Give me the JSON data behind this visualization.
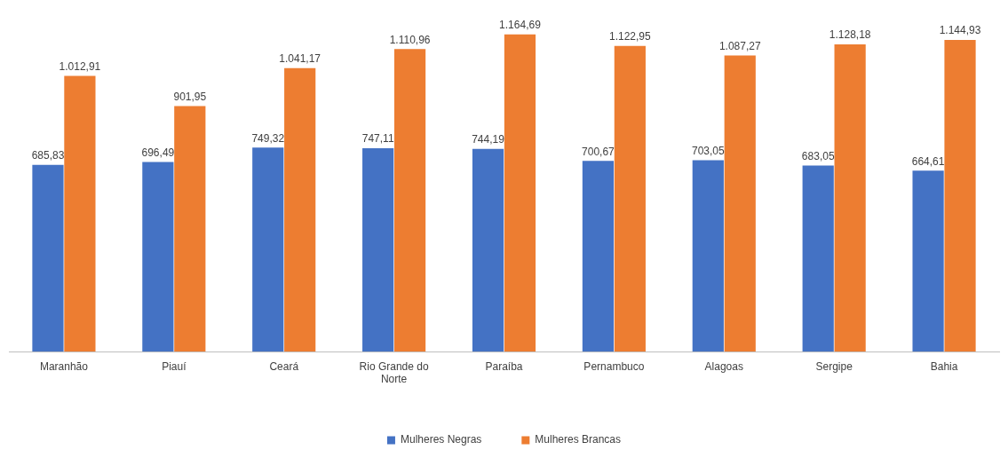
{
  "chart_data": {
    "type": "bar",
    "categories": [
      "Maranhão",
      "Piauí",
      "Ceará",
      "Rio Grande do Norte",
      "Paraíba",
      "Pernambuco",
      "Alagoas",
      "Sergipe",
      "Bahia"
    ],
    "series": [
      {
        "name": "Mulheres Negras",
        "color": "#4472c4",
        "values": [
          685.83,
          696.49,
          749.32,
          747.11,
          744.19,
          700.67,
          703.05,
          683.05,
          664.61
        ],
        "value_labels": [
          "685,83",
          "696,49",
          "749,32",
          "747,11",
          "744,19",
          "700,67",
          "703,05",
          "683,05",
          "664,61"
        ]
      },
      {
        "name": "Mulheres Brancas",
        "color": "#ed7d31",
        "values": [
          1012.91,
          901.95,
          1041.17,
          1110.96,
          1164.69,
          1122.95,
          1087.27,
          1128.18,
          1144.93
        ],
        "value_labels": [
          "1.012,91",
          "901,95",
          "1.041,17",
          "1.110,96",
          "1.164,69",
          "1.122,95",
          "1.087,27",
          "1.128,18",
          "1.144,93"
        ]
      }
    ],
    "legend": "bottom",
    "grid": false
  }
}
